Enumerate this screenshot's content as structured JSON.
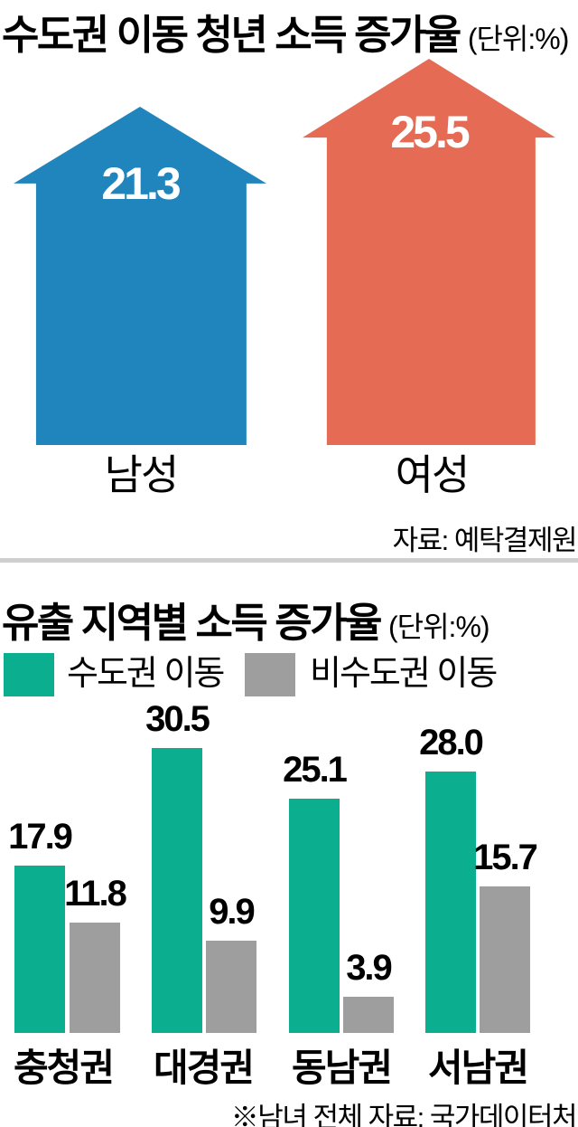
{
  "chart1": {
    "title": "수도권 이동 청년 소득 증가율",
    "unit": "(단위:%)",
    "source": "자료: 예탁결제원",
    "items": [
      {
        "label": "남성",
        "value": "21.3",
        "color": "#2185BD"
      },
      {
        "label": "여성",
        "value": "25.5",
        "color": "#E66B54"
      }
    ]
  },
  "chart2": {
    "title": "유출 지역별 소득 증가율",
    "unit": "(단위:%)",
    "legend": [
      {
        "label": "수도권 이동",
        "color": "#0BAE8F"
      },
      {
        "label": "비수도권 이동",
        "color": "#9E9E9E"
      }
    ],
    "categories": [
      "충청권",
      "대경권",
      "동남권",
      "서남권"
    ],
    "series": [
      {
        "name": "수도권 이동",
        "color": "#0BAE8F",
        "values": [
          17.9,
          30.5,
          25.1,
          28.0
        ]
      },
      {
        "name": "비수도권 이동",
        "color": "#9E9E9E",
        "values": [
          11.8,
          9.9,
          3.9,
          15.7
        ]
      }
    ],
    "value_labels": [
      [
        "17.9",
        "30.5",
        "25.1",
        "28.0"
      ],
      [
        "11.8",
        "9.9",
        "3.9",
        "15.7"
      ]
    ],
    "footnote": "※남녀 전체 자료: 국가데이터처"
  },
  "chart_data": [
    {
      "type": "bar",
      "variant": "arrow-pictogram",
      "title": "수도권 이동 청년 소득 증가율",
      "unit": "%",
      "categories": [
        "남성",
        "여성"
      ],
      "values": [
        21.3,
        25.5
      ],
      "colors": [
        "#2185BD",
        "#E66B54"
      ],
      "value_labels_inside": true,
      "source": "자료: 예탁결제원"
    },
    {
      "type": "bar",
      "title": "유출 지역별 소득 증가율",
      "unit": "%",
      "categories": [
        "충청권",
        "대경권",
        "동남권",
        "서남권"
      ],
      "series": [
        {
          "name": "수도권 이동",
          "color": "#0BAE8F",
          "values": [
            17.9,
            30.5,
            25.1,
            28.0
          ]
        },
        {
          "name": "비수도권 이동",
          "color": "#9E9E9E",
          "values": [
            11.8,
            9.9,
            3.9,
            15.7
          ]
        }
      ],
      "ylim": [
        0,
        32
      ],
      "grid": false,
      "legend_position": "top-left",
      "value_labels": true,
      "footnote": "※남녀 전체 자료: 국가데이터처"
    }
  ]
}
